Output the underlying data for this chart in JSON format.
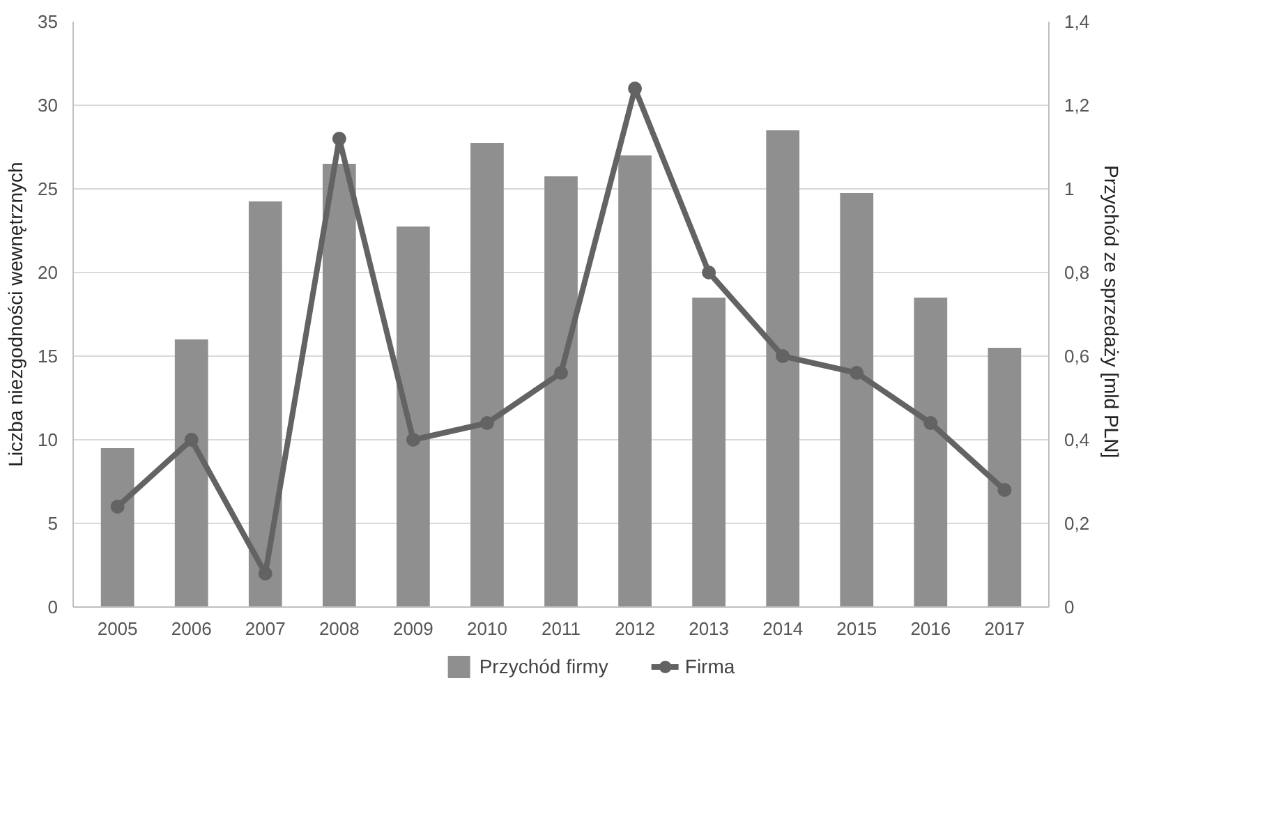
{
  "chart_data": {
    "type": "bar",
    "ylabel": "Liczba niezgodności wewnętrznych",
    "y2label": "Przychód ze sprzedaży  [mld PLN]",
    "categories": [
      "2005",
      "2006",
      "2007",
      "2008",
      "2009",
      "2010",
      "2011",
      "2012",
      "2013",
      "2014",
      "2015",
      "2016",
      "2017"
    ],
    "series": [
      {
        "name": "Przychód firmy",
        "axis": "y2",
        "color": "#8f8f8f",
        "values": [
          0.38,
          0.64,
          0.97,
          1.06,
          0.91,
          1.11,
          1.03,
          1.08,
          0.74,
          1.14,
          0.99,
          0.74,
          0.62
        ]
      },
      {
        "name": "Firma",
        "type": "line",
        "color": "#636363",
        "marker": "circle",
        "values": [
          6,
          10,
          2,
          28,
          10,
          11,
          14,
          31,
          20,
          15,
          14,
          11,
          7
        ]
      }
    ],
    "ylim": [
      0,
      35
    ],
    "yticks": [
      0,
      5,
      10,
      15,
      20,
      25,
      30,
      35
    ],
    "y2lim": [
      0,
      1.4
    ],
    "y2ticks": [
      {
        "value": 0,
        "label": "0"
      },
      {
        "value": 0.2,
        "label": "0,2"
      },
      {
        "value": 0.4,
        "label": "0,4"
      },
      {
        "value": 0.6,
        "label": "0,6"
      },
      {
        "value": 0.8,
        "label": "0,8"
      },
      {
        "value": 1,
        "label": "1"
      },
      {
        "value": 1.2,
        "label": "1,2"
      },
      {
        "value": 1.4,
        "label": "1,4"
      }
    ],
    "grid": "y",
    "legend": "bottom"
  }
}
